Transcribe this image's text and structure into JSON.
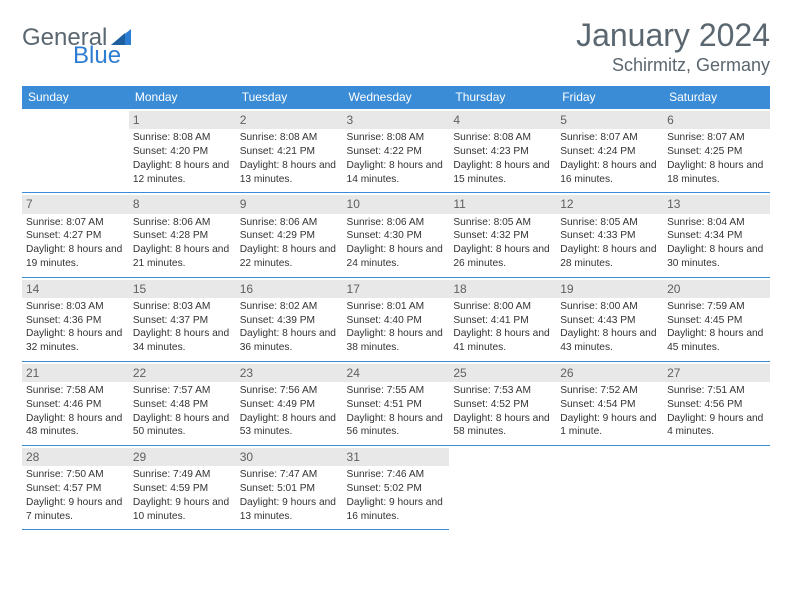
{
  "logo": {
    "general": "General",
    "blue": "Blue"
  },
  "title": "January 2024",
  "location": "Schirmitz, Germany",
  "colors": {
    "header_bg": "#3a8cd6",
    "header_fg": "#ffffff",
    "date_bg": "#e8e8e8",
    "date_fg": "#606060",
    "border": "#3a8cd6",
    "title_color": "#5b6770",
    "logo_blue": "#2d7dd2"
  },
  "dayNames": [
    "Sunday",
    "Monday",
    "Tuesday",
    "Wednesday",
    "Thursday",
    "Friday",
    "Saturday"
  ],
  "weeks": [
    [
      null,
      {
        "d": "1",
        "sr": "8:08 AM",
        "ss": "4:20 PM",
        "dl": "8 hours and 12 minutes."
      },
      {
        "d": "2",
        "sr": "8:08 AM",
        "ss": "4:21 PM",
        "dl": "8 hours and 13 minutes."
      },
      {
        "d": "3",
        "sr": "8:08 AM",
        "ss": "4:22 PM",
        "dl": "8 hours and 14 minutes."
      },
      {
        "d": "4",
        "sr": "8:08 AM",
        "ss": "4:23 PM",
        "dl": "8 hours and 15 minutes."
      },
      {
        "d": "5",
        "sr": "8:07 AM",
        "ss": "4:24 PM",
        "dl": "8 hours and 16 minutes."
      },
      {
        "d": "6",
        "sr": "8:07 AM",
        "ss": "4:25 PM",
        "dl": "8 hours and 18 minutes."
      }
    ],
    [
      {
        "d": "7",
        "sr": "8:07 AM",
        "ss": "4:27 PM",
        "dl": "8 hours and 19 minutes."
      },
      {
        "d": "8",
        "sr": "8:06 AM",
        "ss": "4:28 PM",
        "dl": "8 hours and 21 minutes."
      },
      {
        "d": "9",
        "sr": "8:06 AM",
        "ss": "4:29 PM",
        "dl": "8 hours and 22 minutes."
      },
      {
        "d": "10",
        "sr": "8:06 AM",
        "ss": "4:30 PM",
        "dl": "8 hours and 24 minutes."
      },
      {
        "d": "11",
        "sr": "8:05 AM",
        "ss": "4:32 PM",
        "dl": "8 hours and 26 minutes."
      },
      {
        "d": "12",
        "sr": "8:05 AM",
        "ss": "4:33 PM",
        "dl": "8 hours and 28 minutes."
      },
      {
        "d": "13",
        "sr": "8:04 AM",
        "ss": "4:34 PM",
        "dl": "8 hours and 30 minutes."
      }
    ],
    [
      {
        "d": "14",
        "sr": "8:03 AM",
        "ss": "4:36 PM",
        "dl": "8 hours and 32 minutes."
      },
      {
        "d": "15",
        "sr": "8:03 AM",
        "ss": "4:37 PM",
        "dl": "8 hours and 34 minutes."
      },
      {
        "d": "16",
        "sr": "8:02 AM",
        "ss": "4:39 PM",
        "dl": "8 hours and 36 minutes."
      },
      {
        "d": "17",
        "sr": "8:01 AM",
        "ss": "4:40 PM",
        "dl": "8 hours and 38 minutes."
      },
      {
        "d": "18",
        "sr": "8:00 AM",
        "ss": "4:41 PM",
        "dl": "8 hours and 41 minutes."
      },
      {
        "d": "19",
        "sr": "8:00 AM",
        "ss": "4:43 PM",
        "dl": "8 hours and 43 minutes."
      },
      {
        "d": "20",
        "sr": "7:59 AM",
        "ss": "4:45 PM",
        "dl": "8 hours and 45 minutes."
      }
    ],
    [
      {
        "d": "21",
        "sr": "7:58 AM",
        "ss": "4:46 PM",
        "dl": "8 hours and 48 minutes."
      },
      {
        "d": "22",
        "sr": "7:57 AM",
        "ss": "4:48 PM",
        "dl": "8 hours and 50 minutes."
      },
      {
        "d": "23",
        "sr": "7:56 AM",
        "ss": "4:49 PM",
        "dl": "8 hours and 53 minutes."
      },
      {
        "d": "24",
        "sr": "7:55 AM",
        "ss": "4:51 PM",
        "dl": "8 hours and 56 minutes."
      },
      {
        "d": "25",
        "sr": "7:53 AM",
        "ss": "4:52 PM",
        "dl": "8 hours and 58 minutes."
      },
      {
        "d": "26",
        "sr": "7:52 AM",
        "ss": "4:54 PM",
        "dl": "9 hours and 1 minute."
      },
      {
        "d": "27",
        "sr": "7:51 AM",
        "ss": "4:56 PM",
        "dl": "9 hours and 4 minutes."
      }
    ],
    [
      {
        "d": "28",
        "sr": "7:50 AM",
        "ss": "4:57 PM",
        "dl": "9 hours and 7 minutes."
      },
      {
        "d": "29",
        "sr": "7:49 AM",
        "ss": "4:59 PM",
        "dl": "9 hours and 10 minutes."
      },
      {
        "d": "30",
        "sr": "7:47 AM",
        "ss": "5:01 PM",
        "dl": "9 hours and 13 minutes."
      },
      {
        "d": "31",
        "sr": "7:46 AM",
        "ss": "5:02 PM",
        "dl": "9 hours and 16 minutes."
      },
      null,
      null,
      null
    ]
  ],
  "labels": {
    "sunrise": "Sunrise:",
    "sunset": "Sunset:",
    "daylight": "Daylight:"
  }
}
